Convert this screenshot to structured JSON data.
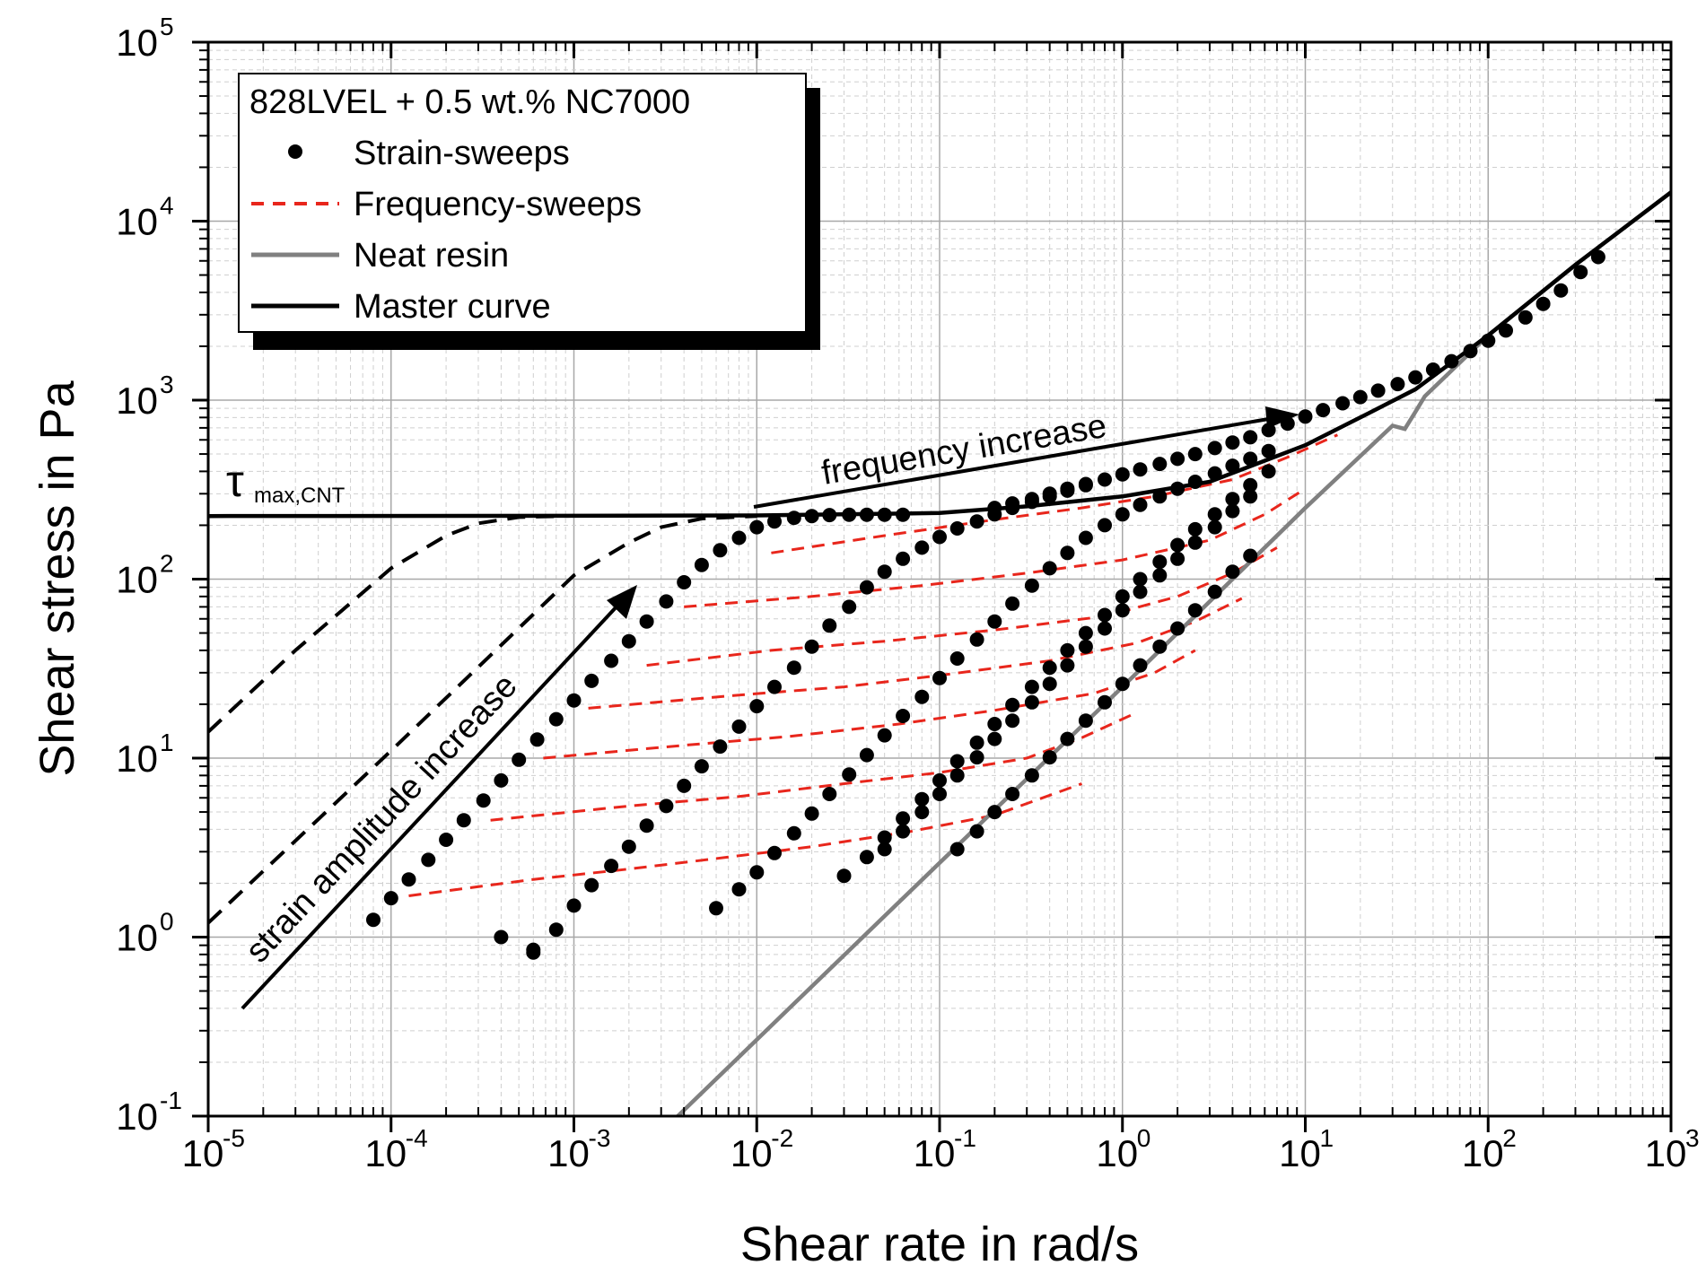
{
  "chart_data": {
    "type": "scatter",
    "xlabel": "Shear rate in rad/s",
    "ylabel": "Shear stress in Pa",
    "xscale": "log",
    "yscale": "log",
    "xlim": [
      1e-05,
      1000
    ],
    "ylim": [
      0.1,
      100000
    ],
    "grid": true,
    "legend_position": "top-left",
    "x_ticks": [
      {
        "base": "10",
        "exp": "-5"
      },
      {
        "base": "10",
        "exp": "-4"
      },
      {
        "base": "10",
        "exp": "-3"
      },
      {
        "base": "10",
        "exp": "-2"
      },
      {
        "base": "10",
        "exp": "-1"
      },
      {
        "base": "10",
        "exp": "0"
      },
      {
        "base": "10",
        "exp": "1"
      },
      {
        "base": "10",
        "exp": "2"
      },
      {
        "base": "10",
        "exp": "3"
      }
    ],
    "y_ticks": [
      {
        "base": "10",
        "exp": "-1"
      },
      {
        "base": "10",
        "exp": "0"
      },
      {
        "base": "10",
        "exp": "1"
      },
      {
        "base": "10",
        "exp": "2"
      },
      {
        "base": "10",
        "exp": "3"
      },
      {
        "base": "10",
        "exp": "4"
      },
      {
        "base": "10",
        "exp": "5"
      }
    ],
    "legend": {
      "title": "828LVEL + 0.5 wt.% NC7000",
      "entries": [
        {
          "label": "Strain-sweeps",
          "style": "dots",
          "color": "#000000"
        },
        {
          "label": "Frequency-sweeps",
          "style": "dashed",
          "color": "#e8261c"
        },
        {
          "label": "Neat resin",
          "style": "line",
          "color": "#808080"
        },
        {
          "label": "Master curve",
          "style": "line",
          "color": "#000000"
        }
      ]
    },
    "annotations": {
      "tau_symbol": "τ",
      "tau_subscript": "max,CNT",
      "frequency_arrow": "frequency increase",
      "strain_arrow": "strain amplitude increase"
    },
    "series": [
      {
        "name": "Master curve",
        "color": "#000000",
        "style": "solid",
        "x": [
          1e-05,
          0.001,
          0.01,
          0.1,
          0.3,
          1,
          3,
          10,
          20,
          40,
          100,
          300,
          1000
        ],
        "y": [
          225,
          226,
          227,
          234,
          255,
          290,
          350,
          560,
          800,
          1150,
          2300,
          5700,
          14500
        ]
      },
      {
        "name": "Neat resin",
        "color": "#808080",
        "style": "solid",
        "x": [
          0.0037,
          0.1,
          1,
          10,
          30,
          35,
          40,
          45,
          100,
          300,
          1000
        ],
        "y": [
          0.1,
          2.6,
          25,
          250,
          720,
          690,
          860,
          1050,
          2300,
          5700,
          14500
        ]
      },
      {
        "name": "Master curve extrapolation (dashed)",
        "color": "#000000",
        "style": "dashed",
        "curves": [
          {
            "x": [
              1e-05,
              3e-05,
              0.0001,
              0.0002,
              0.0003,
              0.0005,
              0.001
            ],
            "y": [
              14,
              40,
              115,
              175,
              205,
              222,
              226
            ]
          },
          {
            "x": [
              1e-05,
              0.0001,
              0.001,
              0.002,
              0.003,
              0.005,
              0.01
            ],
            "y": [
              1.2,
              11,
              105,
              160,
              195,
              218,
              225
            ]
          }
        ]
      },
      {
        "name": "Frequency-sweeps",
        "color": "#e8261c",
        "style": "dashed",
        "curves": [
          {
            "x": [
              0.000125,
              0.0006,
              0.002,
              0.007,
              0.02,
              0.07,
              0.2,
              0.6
            ],
            "y": [
              1.7,
              2.1,
              2.4,
              2.8,
              3.2,
              3.9,
              4.8,
              7.2
            ]
          },
          {
            "x": [
              0.00035,
              0.002,
              0.008,
              0.03,
              0.1,
              0.3,
              0.6,
              1.2
            ],
            "y": [
              4.5,
              5.4,
              6.1,
              7.2,
              8.3,
              10,
              13,
              18
            ]
          },
          {
            "x": [
              0.00068,
              0.004,
              0.015,
              0.06,
              0.2,
              0.7,
              1.5,
              2.5
            ],
            "y": [
              10,
              11.8,
              13.2,
              15.5,
              18.5,
              23,
              30,
              40
            ]
          },
          {
            "x": [
              0.0012,
              0.008,
              0.03,
              0.1,
              0.4,
              1.2,
              2.5,
              4.5
            ],
            "y": [
              19,
              22.5,
              25,
              29,
              35,
              44,
              58,
              78
            ]
          },
          {
            "x": [
              0.0025,
              0.012,
              0.05,
              0.2,
              0.8,
              2,
              4,
              7
            ],
            "y": [
              33,
              40,
              45,
              52,
              62,
              80,
              108,
              150
            ]
          },
          {
            "x": [
              0.004,
              0.02,
              0.08,
              0.3,
              1,
              3,
              6,
              10
            ],
            "y": [
              70,
              80,
              92,
              108,
              128,
              165,
              230,
              320
            ]
          },
          {
            "x": [
              0.012,
              0.05,
              0.2,
              0.6,
              1.5,
              4,
              8,
              15
            ],
            "y": [
              140,
              175,
              215,
              250,
              290,
              360,
              480,
              640
            ]
          }
        ]
      },
      {
        "name": "Strain-sweeps",
        "color": "#000000",
        "style": "dots",
        "curves": [
          {
            "x": [
              0.0004,
              0.0006
            ],
            "y": [
              1.0,
              0.85
            ]
          },
          {
            "x": [
              8e-05,
              0.0001,
              0.000125,
              0.00016,
              0.0002,
              0.00025,
              0.00032,
              0.0004,
              0.0005,
              0.00063,
              0.0008,
              0.001,
              0.00125,
              0.0016,
              0.002,
              0.0025,
              0.0032,
              0.004,
              0.005,
              0.0063,
              0.008,
              0.01,
              0.0125,
              0.016,
              0.02,
              0.025,
              0.032,
              0.04,
              0.05,
              0.063
            ],
            "y": [
              1.25,
              1.65,
              2.1,
              2.7,
              3.5,
              4.5,
              5.8,
              7.5,
              9.8,
              12.7,
              16.5,
              21,
              27,
              35,
              45,
              58,
              75,
              96,
              120,
              145,
              170,
              195,
              210,
              220,
              225,
              228,
              229,
              229,
              229,
              229
            ]
          },
          {
            "x": [
              0.2,
              0.25,
              0.32,
              0.4,
              0.5,
              0.63
            ],
            "y": [
              250,
              265,
              280,
              300,
              320,
              340
            ]
          },
          {
            "x": [
              0.0006,
              0.0008,
              0.001,
              0.00125,
              0.0016,
              0.002,
              0.0025,
              0.0032,
              0.004,
              0.005,
              0.0063,
              0.008,
              0.01,
              0.0125,
              0.016,
              0.02,
              0.025,
              0.032,
              0.04,
              0.05,
              0.063,
              0.08,
              0.1,
              0.125,
              0.16,
              0.2,
              0.25,
              0.32,
              0.4,
              0.5,
              0.63,
              0.8,
              1,
              1.25,
              1.6,
              2,
              2.5,
              3.2,
              4,
              5,
              6.3,
              8,
              10,
              12.5,
              16,
              20,
              25,
              32,
              40,
              50,
              63,
              80,
              100,
              125,
              160,
              200,
              250,
              320,
              400
            ],
            "y": [
              0.82,
              1.1,
              1.5,
              1.95,
              2.5,
              3.2,
              4.2,
              5.4,
              7,
              9,
              11.6,
              15,
              19.5,
              25,
              32,
              42,
              55,
              70,
              90,
              110,
              130,
              150,
              172,
              192,
              210,
              230,
              250,
              270,
              290,
              312,
              335,
              360,
              385,
              410,
              440,
              470,
              500,
              540,
              580,
              620,
              680,
              740,
              810,
              880,
              960,
              1040,
              1130,
              1230,
              1340,
              1480,
              1650,
              1880,
              2150,
              2450,
              2900,
              3450,
              4100,
              5200,
              6300
            ]
          },
          {
            "x": [
              0.006,
              0.008,
              0.01,
              0.0125,
              0.016,
              0.02,
              0.025,
              0.032,
              0.04,
              0.05,
              0.063,
              0.08,
              0.1,
              0.125,
              0.16,
              0.2,
              0.25,
              0.32,
              0.4,
              0.5,
              0.63,
              0.8,
              1,
              1.25,
              1.6,
              2,
              2.5,
              3.2,
              4,
              5,
              6.3
            ],
            "y": [
              1.45,
              1.85,
              2.3,
              2.95,
              3.8,
              4.9,
              6.3,
              8.1,
              10.4,
              13.4,
              17.2,
              22,
              28,
              36,
              46,
              58,
              73,
              92,
              115,
              140,
              170,
              200,
              230,
              260,
              290,
              320,
              350,
              390,
              430,
              470,
              520
            ]
          },
          {
            "x": [
              0.03,
              0.04,
              0.05,
              0.063,
              0.08,
              0.1,
              0.125,
              0.16,
              0.2,
              0.25,
              0.32,
              0.4,
              0.5,
              0.63,
              0.8,
              1,
              1.25,
              1.6,
              2,
              2.5,
              3.2,
              4,
              5,
              6.3
            ],
            "y": [
              2.2,
              2.8,
              3.6,
              4.6,
              5.9,
              7.5,
              9.6,
              12.2,
              15.5,
              19.8,
              25,
              32,
              40,
              50,
              63,
              80,
              100,
              125,
              155,
              190,
              230,
              280,
              335,
              400
            ]
          },
          {
            "x": [
              0.05,
              0.063,
              0.08,
              0.1,
              0.125,
              0.16,
              0.2,
              0.25,
              0.32,
              0.4,
              0.5,
              0.63,
              0.8,
              1,
              1.25,
              1.6,
              2,
              2.5,
              3.2,
              4,
              5
            ],
            "y": [
              3.1,
              3.9,
              5,
              6.3,
              8,
              10.1,
              12.8,
              16.2,
              20.5,
              26,
              33,
              42,
              53,
              67,
              85,
              105,
              130,
              160,
              195,
              240,
              290
            ]
          },
          {
            "x": [
              0.125,
              0.16,
              0.2,
              0.25,
              0.32,
              0.4,
              0.5,
              0.63,
              0.8,
              1,
              1.25,
              1.6,
              2,
              2.5,
              3.2,
              4,
              5
            ],
            "y": [
              3.1,
              3.9,
              5,
              6.3,
              8,
              10.1,
              12.8,
              16.2,
              20.5,
              26,
              33,
              42,
              53,
              67,
              85,
              110,
              135
            ]
          }
        ]
      }
    ]
  }
}
